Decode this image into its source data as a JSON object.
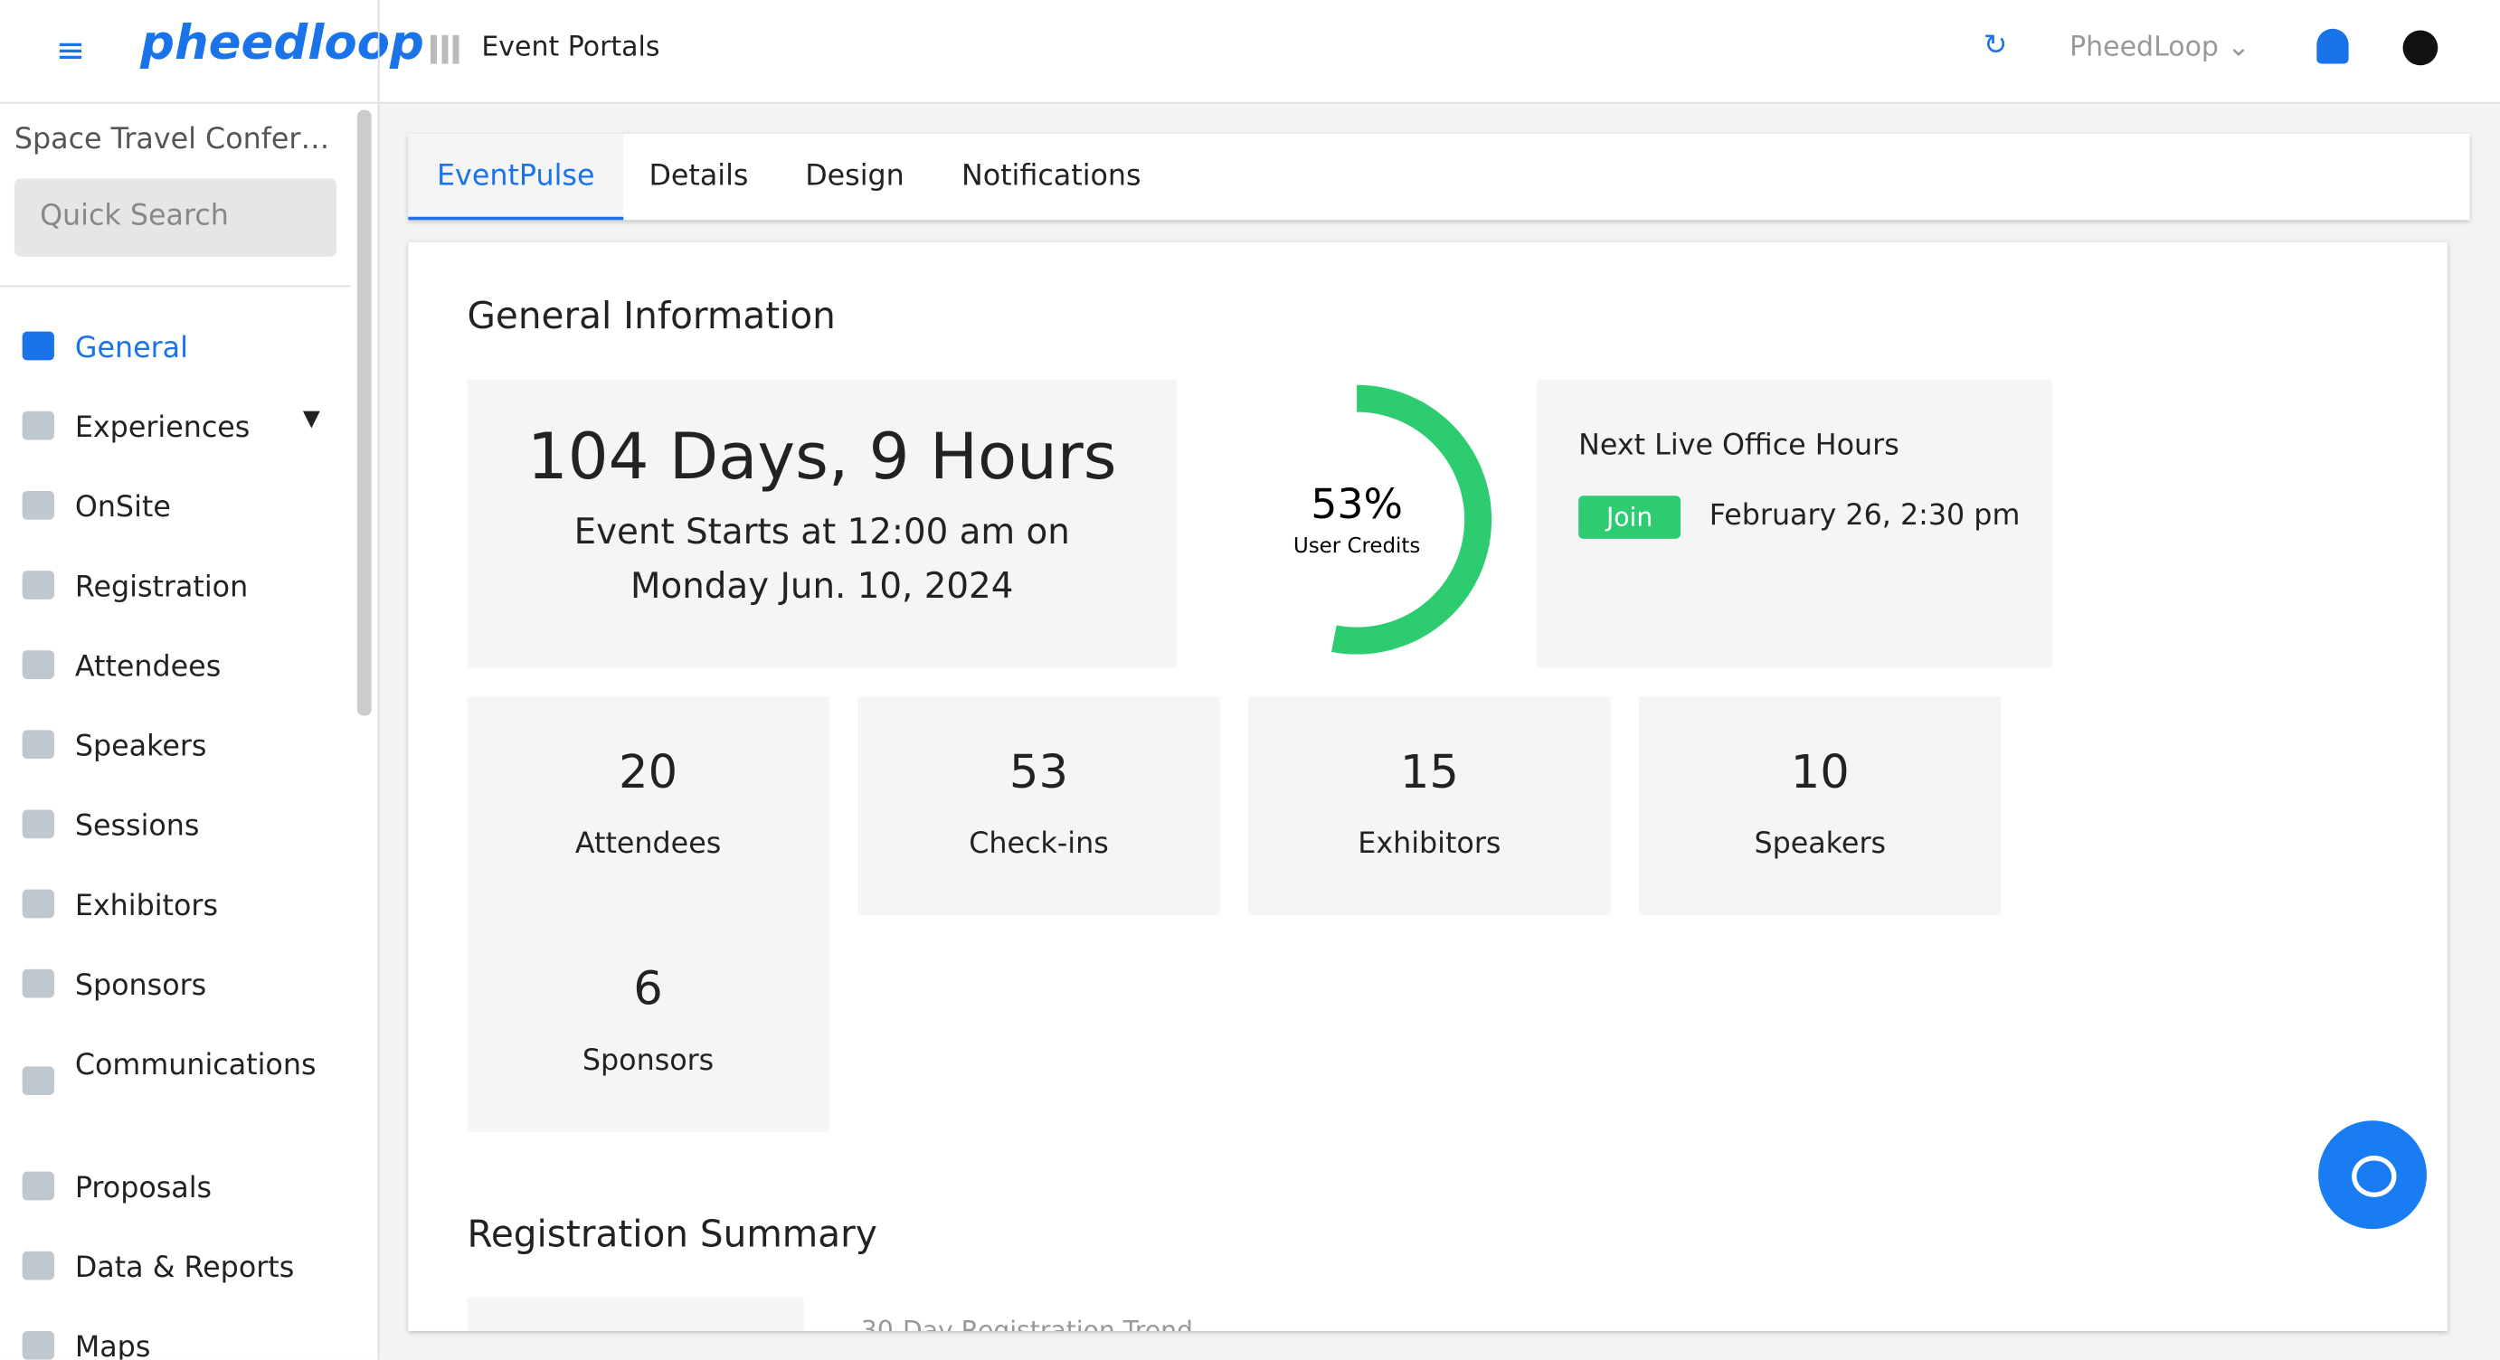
{
  "header": {
    "logo": "pheedloop",
    "portal": "Event Portals",
    "account": "PheedLoop"
  },
  "sidebar": {
    "event_name": "Space Travel Confer…",
    "search": "Quick Search",
    "nav": [
      "General",
      "Experiences",
      "OnSite",
      "Registration",
      "Attendees",
      "Speakers",
      "Sessions",
      "Exhibitors",
      "Sponsors",
      "Communications",
      "Proposals",
      "Data & Reports",
      "Maps"
    ]
  },
  "tabs": [
    "EventPulse",
    "Details",
    "Design",
    "Notifications"
  ],
  "general": {
    "title": "General Information",
    "countdown": "104 Days, 9 Hours",
    "starts": "Event Starts at 12:00 am on Monday Jun. 10, 2024",
    "credits": {
      "value": 53,
      "label": "53%",
      "caption": "User Credits"
    },
    "office_hours": {
      "title": "Next Live Office Hours",
      "button": "Join",
      "date": "February 26, 2:30 pm"
    },
    "stats": [
      {
        "value": "20",
        "label": "Attendees"
      },
      {
        "value": "53",
        "label": "Check-ins"
      },
      {
        "value": "15",
        "label": "Exhibitors"
      },
      {
        "value": "10",
        "label": "Speakers"
      },
      {
        "value": "6",
        "label": "Sponsors"
      }
    ]
  },
  "registration": {
    "title": "Registration Summary",
    "trend": "30-Day Registration Trend"
  }
}
